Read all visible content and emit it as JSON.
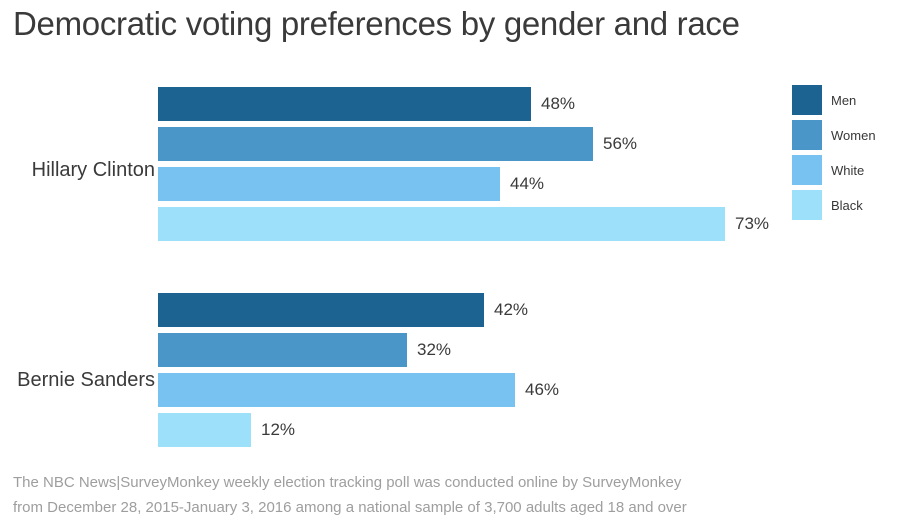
{
  "title": "Democratic voting preferences by gender and race",
  "legend": [
    {
      "label": "Men",
      "color": "#1d6391"
    },
    {
      "label": "Women",
      "color": "#4a96c8"
    },
    {
      "label": "White",
      "color": "#77c2f0"
    },
    {
      "label": "Black",
      "color": "#9ce0fa"
    }
  ],
  "chart_data": {
    "type": "bar",
    "orientation": "horizontal",
    "title": "Democratic voting preferences by gender and race",
    "categories": [
      "Hillary Clinton",
      "Bernie Sanders"
    ],
    "series": [
      {
        "name": "Men",
        "color": "#1d6391",
        "values": [
          48,
          42
        ]
      },
      {
        "name": "Women",
        "color": "#4a96c8",
        "values": [
          56,
          32
        ]
      },
      {
        "name": "White",
        "color": "#77c2f0",
        "values": [
          44,
          46
        ]
      },
      {
        "name": "Black",
        "color": "#9ce0fa",
        "values": [
          73,
          12
        ]
      }
    ],
    "value_suffix": "%",
    "xlim": [
      0,
      100
    ],
    "grid": false,
    "legend_position": "right",
    "data_labels": true
  },
  "footer": {
    "line1": "The NBC News|SurveyMonkey weekly election tracking poll was conducted online by SurveyMonkey",
    "line2": "from December 28, 2015-January 3, 2016 among a national sample of 3,700 adults aged 18 and over"
  }
}
